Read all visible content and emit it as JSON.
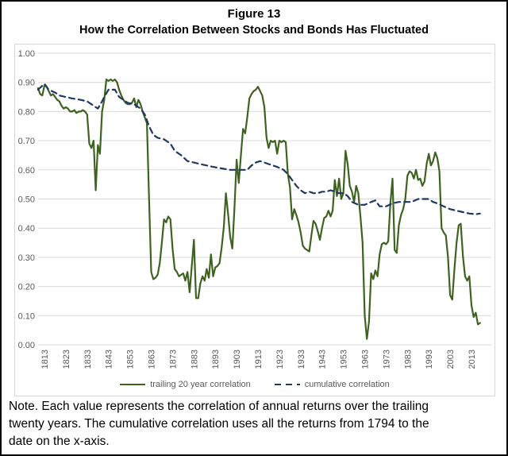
{
  "figure": {
    "title_line1": "Figure 13",
    "title_line2": "How the Correlation Between Stocks and Bonds Has Fluctuated",
    "note_lines": [
      "Note. Each value represents the correlation of annual returns over the trailing",
      "twenty years. The cumulative correlation uses all the returns from 1794 to the",
      "date on the x-axis."
    ]
  },
  "colors": {
    "trailing_line": "#3e6321",
    "cumulative_line": "#1f3864",
    "gridline": "#d9d9d9",
    "tick_label": "#595959",
    "chart_border": "#d6d6d6",
    "outer_border": "#000000"
  },
  "chart_data": {
    "type": "line",
    "title": "Figure 13 — How the Correlation Between Stocks and Bonds Has Fluctuated",
    "xlabel": "",
    "ylabel": "",
    "grid": true,
    "legend_position": "bottom",
    "xlim": [
      1810,
      2018
    ],
    "ylim": [
      0.0,
      1.0
    ],
    "x_ticks": [
      1813,
      1823,
      1833,
      1843,
      1853,
      1863,
      1873,
      1883,
      1893,
      1903,
      1913,
      1923,
      1933,
      1943,
      1953,
      1963,
      1973,
      1983,
      1993,
      2003,
      2013
    ],
    "y_ticks": [
      "0.00",
      "0.10",
      "0.20",
      "0.30",
      "0.40",
      "0.50",
      "0.60",
      "0.70",
      "0.80",
      "0.90",
      "1.00"
    ],
    "series": [
      {
        "name": "trailing 20 year correlation",
        "style": "solid",
        "color": "#3e6321",
        "points": [
          [
            1810,
            0.88
          ],
          [
            1811,
            0.86
          ],
          [
            1812,
            0.855
          ],
          [
            1813,
            0.89
          ],
          [
            1814,
            0.885
          ],
          [
            1815,
            0.87
          ],
          [
            1816,
            0.855
          ],
          [
            1817,
            0.86
          ],
          [
            1818,
            0.85
          ],
          [
            1819,
            0.84
          ],
          [
            1820,
            0.835
          ],
          [
            1821,
            0.82
          ],
          [
            1822,
            0.81
          ],
          [
            1823,
            0.815
          ],
          [
            1824,
            0.81
          ],
          [
            1825,
            0.8
          ],
          [
            1826,
            0.8
          ],
          [
            1827,
            0.805
          ],
          [
            1828,
            0.795
          ],
          [
            1829,
            0.8
          ],
          [
            1830,
            0.8
          ],
          [
            1831,
            0.805
          ],
          [
            1832,
            0.8
          ],
          [
            1833,
            0.79
          ],
          [
            1834,
            0.69
          ],
          [
            1835,
            0.675
          ],
          [
            1836,
            0.7
          ],
          [
            1837,
            0.53
          ],
          [
            1838,
            0.685
          ],
          [
            1839,
            0.655
          ],
          [
            1840,
            0.8
          ],
          [
            1841,
            0.84
          ],
          [
            1842,
            0.91
          ],
          [
            1843,
            0.905
          ],
          [
            1844,
            0.91
          ],
          [
            1845,
            0.905
          ],
          [
            1846,
            0.91
          ],
          [
            1847,
            0.9
          ],
          [
            1848,
            0.875
          ],
          [
            1849,
            0.855
          ],
          [
            1850,
            0.84
          ],
          [
            1851,
            0.83
          ],
          [
            1852,
            0.825
          ],
          [
            1853,
            0.825
          ],
          [
            1854,
            0.83
          ],
          [
            1855,
            0.845
          ],
          [
            1856,
            0.815
          ],
          [
            1857,
            0.84
          ],
          [
            1858,
            0.825
          ],
          [
            1859,
            0.8
          ],
          [
            1860,
            0.78
          ],
          [
            1861,
            0.76
          ],
          [
            1862,
            0.5
          ],
          [
            1863,
            0.25
          ],
          [
            1864,
            0.225
          ],
          [
            1865,
            0.23
          ],
          [
            1866,
            0.24
          ],
          [
            1867,
            0.28
          ],
          [
            1868,
            0.35
          ],
          [
            1869,
            0.43
          ],
          [
            1870,
            0.42
          ],
          [
            1871,
            0.44
          ],
          [
            1872,
            0.43
          ],
          [
            1873,
            0.33
          ],
          [
            1874,
            0.26
          ],
          [
            1875,
            0.25
          ],
          [
            1876,
            0.235
          ],
          [
            1877,
            0.24
          ],
          [
            1878,
            0.245
          ],
          [
            1879,
            0.22
          ],
          [
            1880,
            0.25
          ],
          [
            1881,
            0.18
          ],
          [
            1882,
            0.27
          ],
          [
            1883,
            0.36
          ],
          [
            1884,
            0.16
          ],
          [
            1885,
            0.16
          ],
          [
            1886,
            0.21
          ],
          [
            1887,
            0.235
          ],
          [
            1888,
            0.22
          ],
          [
            1889,
            0.26
          ],
          [
            1890,
            0.23
          ],
          [
            1891,
            0.31
          ],
          [
            1892,
            0.235
          ],
          [
            1893,
            0.265
          ],
          [
            1894,
            0.27
          ],
          [
            1895,
            0.28
          ],
          [
            1896,
            0.335
          ],
          [
            1897,
            0.405
          ],
          [
            1898,
            0.52
          ],
          [
            1899,
            0.45
          ],
          [
            1900,
            0.37
          ],
          [
            1901,
            0.33
          ],
          [
            1902,
            0.47
          ],
          [
            1903,
            0.635
          ],
          [
            1904,
            0.555
          ],
          [
            1905,
            0.65
          ],
          [
            1906,
            0.74
          ],
          [
            1907,
            0.725
          ],
          [
            1908,
            0.78
          ],
          [
            1909,
            0.845
          ],
          [
            1910,
            0.86
          ],
          [
            1911,
            0.87
          ],
          [
            1912,
            0.875
          ],
          [
            1913,
            0.885
          ],
          [
            1914,
            0.87
          ],
          [
            1915,
            0.855
          ],
          [
            1916,
            0.815
          ],
          [
            1917,
            0.71
          ],
          [
            1918,
            0.675
          ],
          [
            1919,
            0.7
          ],
          [
            1920,
            0.695
          ],
          [
            1921,
            0.7
          ],
          [
            1922,
            0.655
          ],
          [
            1923,
            0.7
          ],
          [
            1924,
            0.695
          ],
          [
            1925,
            0.7
          ],
          [
            1926,
            0.695
          ],
          [
            1927,
            0.585
          ],
          [
            1928,
            0.54
          ],
          [
            1929,
            0.43
          ],
          [
            1930,
            0.465
          ],
          [
            1931,
            0.445
          ],
          [
            1932,
            0.42
          ],
          [
            1933,
            0.385
          ],
          [
            1934,
            0.34
          ],
          [
            1935,
            0.33
          ],
          [
            1936,
            0.325
          ],
          [
            1937,
            0.32
          ],
          [
            1938,
            0.375
          ],
          [
            1939,
            0.425
          ],
          [
            1940,
            0.415
          ],
          [
            1941,
            0.39
          ],
          [
            1942,
            0.36
          ],
          [
            1943,
            0.4
          ],
          [
            1944,
            0.435
          ],
          [
            1945,
            0.44
          ],
          [
            1946,
            0.46
          ],
          [
            1947,
            0.44
          ],
          [
            1948,
            0.46
          ],
          [
            1949,
            0.565
          ],
          [
            1950,
            0.51
          ],
          [
            1951,
            0.57
          ],
          [
            1952,
            0.5
          ],
          [
            1953,
            0.52
          ],
          [
            1954,
            0.665
          ],
          [
            1955,
            0.62
          ],
          [
            1956,
            0.545
          ],
          [
            1957,
            0.525
          ],
          [
            1958,
            0.49
          ],
          [
            1959,
            0.545
          ],
          [
            1960,
            0.52
          ],
          [
            1961,
            0.44
          ],
          [
            1962,
            0.35
          ],
          [
            1963,
            0.1
          ],
          [
            1964,
            0.02
          ],
          [
            1965,
            0.08
          ],
          [
            1966,
            0.245
          ],
          [
            1967,
            0.225
          ],
          [
            1968,
            0.255
          ],
          [
            1969,
            0.235
          ],
          [
            1970,
            0.31
          ],
          [
            1971,
            0.345
          ],
          [
            1972,
            0.35
          ],
          [
            1973,
            0.345
          ],
          [
            1974,
            0.355
          ],
          [
            1975,
            0.485
          ],
          [
            1976,
            0.57
          ],
          [
            1977,
            0.325
          ],
          [
            1978,
            0.315
          ],
          [
            1979,
            0.41
          ],
          [
            1980,
            0.445
          ],
          [
            1981,
            0.465
          ],
          [
            1982,
            0.5
          ],
          [
            1983,
            0.58
          ],
          [
            1984,
            0.595
          ],
          [
            1985,
            0.59
          ],
          [
            1986,
            0.57
          ],
          [
            1987,
            0.6
          ],
          [
            1988,
            0.565
          ],
          [
            1989,
            0.57
          ],
          [
            1990,
            0.545
          ],
          [
            1991,
            0.56
          ],
          [
            1992,
            0.62
          ],
          [
            1993,
            0.655
          ],
          [
            1994,
            0.615
          ],
          [
            1995,
            0.63
          ],
          [
            1996,
            0.66
          ],
          [
            1997,
            0.64
          ],
          [
            1998,
            0.595
          ],
          [
            1999,
            0.4
          ],
          [
            2000,
            0.385
          ],
          [
            2001,
            0.375
          ],
          [
            2002,
            0.3
          ],
          [
            2003,
            0.17
          ],
          [
            2004,
            0.155
          ],
          [
            2005,
            0.26
          ],
          [
            2006,
            0.35
          ],
          [
            2007,
            0.41
          ],
          [
            2008,
            0.415
          ],
          [
            2009,
            0.305
          ],
          [
            2010,
            0.235
          ],
          [
            2011,
            0.22
          ],
          [
            2012,
            0.235
          ],
          [
            2013,
            0.135
          ],
          [
            2014,
            0.095
          ],
          [
            2015,
            0.11
          ],
          [
            2016,
            0.07
          ],
          [
            2017,
            0.075
          ]
        ]
      },
      {
        "name": "cumulative correlation",
        "style": "dashed",
        "color": "#1f3864",
        "points": [
          [
            1810,
            0.875
          ],
          [
            1813,
            0.895
          ],
          [
            1815,
            0.875
          ],
          [
            1818,
            0.865
          ],
          [
            1820,
            0.855
          ],
          [
            1823,
            0.85
          ],
          [
            1826,
            0.845
          ],
          [
            1830,
            0.84
          ],
          [
            1833,
            0.835
          ],
          [
            1835,
            0.825
          ],
          [
            1837,
            0.815
          ],
          [
            1838,
            0.81
          ],
          [
            1840,
            0.835
          ],
          [
            1841,
            0.85
          ],
          [
            1843,
            0.875
          ],
          [
            1846,
            0.875
          ],
          [
            1848,
            0.85
          ],
          [
            1850,
            0.84
          ],
          [
            1852,
            0.83
          ],
          [
            1855,
            0.825
          ],
          [
            1858,
            0.81
          ],
          [
            1860,
            0.79
          ],
          [
            1862,
            0.75
          ],
          [
            1864,
            0.72
          ],
          [
            1866,
            0.71
          ],
          [
            1869,
            0.705
          ],
          [
            1872,
            0.69
          ],
          [
            1874,
            0.665
          ],
          [
            1877,
            0.65
          ],
          [
            1880,
            0.63
          ],
          [
            1883,
            0.625
          ],
          [
            1886,
            0.62
          ],
          [
            1889,
            0.615
          ],
          [
            1892,
            0.61
          ],
          [
            1896,
            0.605
          ],
          [
            1900,
            0.6
          ],
          [
            1904,
            0.6
          ],
          [
            1908,
            0.6
          ],
          [
            1910,
            0.615
          ],
          [
            1912,
            0.625
          ],
          [
            1914,
            0.63
          ],
          [
            1916,
            0.625
          ],
          [
            1918,
            0.62
          ],
          [
            1920,
            0.615
          ],
          [
            1922,
            0.61
          ],
          [
            1925,
            0.6
          ],
          [
            1927,
            0.585
          ],
          [
            1929,
            0.565
          ],
          [
            1931,
            0.545
          ],
          [
            1933,
            0.53
          ],
          [
            1935,
            0.52
          ],
          [
            1937,
            0.525
          ],
          [
            1939,
            0.52
          ],
          [
            1941,
            0.52
          ],
          [
            1943,
            0.525
          ],
          [
            1945,
            0.525
          ],
          [
            1947,
            0.53
          ],
          [
            1949,
            0.525
          ],
          [
            1951,
            0.52
          ],
          [
            1953,
            0.52
          ],
          [
            1955,
            0.51
          ],
          [
            1957,
            0.49
          ],
          [
            1960,
            0.48
          ],
          [
            1963,
            0.48
          ],
          [
            1966,
            0.49
          ],
          [
            1968,
            0.495
          ],
          [
            1970,
            0.475
          ],
          [
            1973,
            0.475
          ],
          [
            1976,
            0.485
          ],
          [
            1979,
            0.49
          ],
          [
            1982,
            0.49
          ],
          [
            1985,
            0.49
          ],
          [
            1988,
            0.5
          ],
          [
            1991,
            0.5
          ],
          [
            1993,
            0.5
          ],
          [
            1995,
            0.49
          ],
          [
            1997,
            0.485
          ],
          [
            2000,
            0.475
          ],
          [
            2003,
            0.465
          ],
          [
            2006,
            0.46
          ],
          [
            2009,
            0.455
          ],
          [
            2012,
            0.45
          ],
          [
            2015,
            0.448
          ],
          [
            2017,
            0.45
          ]
        ]
      }
    ]
  }
}
